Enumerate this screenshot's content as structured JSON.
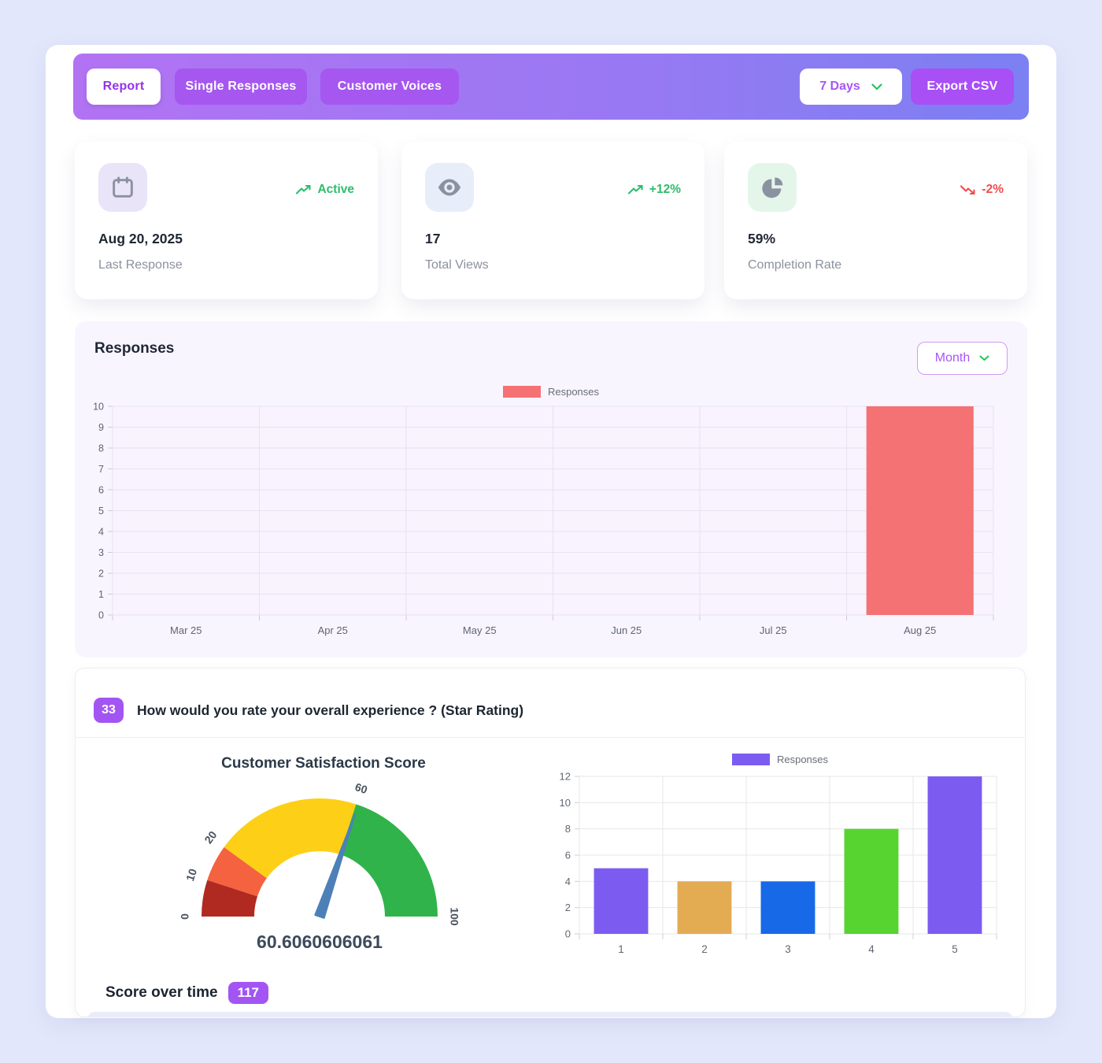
{
  "header": {
    "tabs": [
      {
        "label": "Report",
        "active": true
      },
      {
        "label": "Single Responses",
        "active": false
      },
      {
        "label": "Customer Voices",
        "active": false
      }
    ],
    "range_select": {
      "value": "7 Days"
    },
    "export_csv_label": "Export CSV"
  },
  "stats": [
    {
      "icon": "calendar-icon",
      "trend": "up",
      "badge": "Active",
      "value": "Aug 20, 2025",
      "label": "Last Response"
    },
    {
      "icon": "eye-icon",
      "trend": "up",
      "badge": "+12%",
      "value": "17",
      "label": "Total Views"
    },
    {
      "icon": "pie-chart-icon",
      "trend": "down",
      "badge": "-2%",
      "value": "59%",
      "label": "Completion Rate"
    }
  ],
  "responses_section": {
    "title": "Responses",
    "period_select": {
      "value": "Month"
    }
  },
  "question": {
    "number": "33",
    "text": "How would you rate your overall experience ? (Star Rating)",
    "score_over_time_label": "Score over time",
    "score_over_time_value": "117"
  },
  "colors": {
    "accent_purple": "#a855f7",
    "header_gradient_left": "#b273f3",
    "header_gradient_right": "#7b80f2",
    "positive_green": "#2ebd6b",
    "negative_red": "#ef4d4d",
    "page_background": "#e2e7fb",
    "section_background": "#f9f5fe"
  },
  "chart_data": [
    {
      "type": "bar",
      "title": "Responses",
      "categories": [
        "Mar 25",
        "Apr 25",
        "May 25",
        "Jun 25",
        "Jul 25",
        "Aug 25"
      ],
      "values": [
        0,
        0,
        0,
        0,
        0,
        10
      ],
      "xlabel": "",
      "ylabel": "",
      "ylim": [
        0,
        10
      ],
      "ytick_step": 1,
      "bar_color": "#f47174",
      "legend": [
        "Responses"
      ],
      "legend_position": "top",
      "grid": true
    },
    {
      "type": "gauge",
      "title": "Customer Satisfaction Score",
      "value": 60.6060606061,
      "display_value": "60.6060606061",
      "min": 0,
      "max": 100,
      "ticks": [
        0,
        10,
        20,
        60,
        100
      ],
      "segments": [
        {
          "from": 0,
          "to": 10,
          "color": "#b02a21"
        },
        {
          "from": 10,
          "to": 20,
          "color": "#f4623f"
        },
        {
          "from": 20,
          "to": 60,
          "color": "#fdd017"
        },
        {
          "from": 60,
          "to": 100,
          "color": "#30b34a"
        }
      ],
      "needle_color": "#4d80b7",
      "value_color": "#3d4a5c"
    },
    {
      "type": "bar",
      "title": "",
      "categories": [
        "1",
        "2",
        "3",
        "4",
        "5"
      ],
      "values": [
        5,
        4,
        4,
        8,
        12
      ],
      "xlabel": "",
      "ylabel": "",
      "ylim": [
        0,
        12
      ],
      "ytick_step": 2,
      "bar_colors": [
        "#7c5cf0",
        "#e3ab52",
        "#1769e8",
        "#57d42f",
        "#7c5cf0"
      ],
      "legend": [
        "Responses"
      ],
      "legend_color": "#7c5cf0",
      "legend_position": "top",
      "grid": true
    }
  ]
}
